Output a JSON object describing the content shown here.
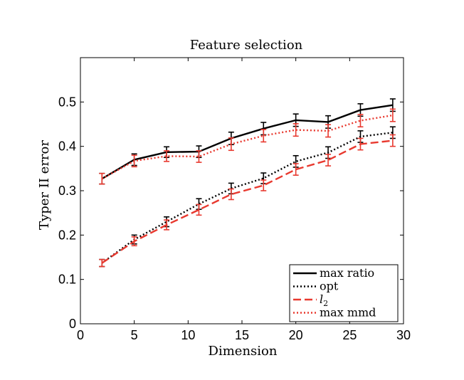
{
  "chart_data": {
    "type": "line",
    "title": "Feature selection",
    "xlabel": "Dimension",
    "ylabel": "Typer II error",
    "xlim": [
      0,
      30
    ],
    "ylim": [
      0,
      0.6
    ],
    "xticks": [
      0,
      5,
      10,
      15,
      20,
      25,
      30
    ],
    "yticks": [
      0,
      0.1,
      0.2,
      0.3,
      0.4,
      0.5
    ],
    "xtick_labels": [
      "0",
      "5",
      "10",
      "15",
      "20",
      "25",
      "30"
    ],
    "ytick_labels": [
      "0",
      "0.1",
      "0.2",
      "0.3",
      "0.4",
      "0.5"
    ],
    "grid": false,
    "legend_position": "bottom-right",
    "x": [
      2,
      5,
      8,
      11,
      14,
      17,
      20,
      23,
      26,
      29
    ],
    "series": [
      {
        "name": "max ratio",
        "color": "#000000",
        "dash": "solid",
        "values": [
          0.327,
          0.37,
          0.387,
          0.388,
          0.418,
          0.44,
          0.459,
          0.455,
          0.482,
          0.493
        ],
        "errors": [
          0.012,
          0.013,
          0.012,
          0.013,
          0.014,
          0.014,
          0.014,
          0.014,
          0.014,
          0.014
        ]
      },
      {
        "name": "opt",
        "color": "#000000",
        "dash": "dotted",
        "values": [
          0.137,
          0.19,
          0.23,
          0.27,
          0.305,
          0.328,
          0.366,
          0.386,
          0.422,
          0.431
        ],
        "errors": [
          0.008,
          0.01,
          0.011,
          0.012,
          0.012,
          0.012,
          0.013,
          0.013,
          0.013,
          0.013
        ]
      },
      {
        "name": "l2",
        "color": "#e8392f",
        "dash": "dashed",
        "values": [
          0.137,
          0.186,
          0.223,
          0.257,
          0.292,
          0.312,
          0.348,
          0.369,
          0.405,
          0.413
        ],
        "errors": [
          0.008,
          0.01,
          0.011,
          0.012,
          0.012,
          0.012,
          0.013,
          0.013,
          0.013,
          0.013
        ]
      },
      {
        "name": "max mmd",
        "color": "#e8392f",
        "dash": "dotted",
        "values": [
          0.327,
          0.367,
          0.378,
          0.377,
          0.405,
          0.424,
          0.437,
          0.435,
          0.458,
          0.47
        ],
        "errors": [
          0.012,
          0.013,
          0.012,
          0.013,
          0.014,
          0.014,
          0.014,
          0.014,
          0.014,
          0.014
        ]
      }
    ],
    "legend": {
      "entries": [
        {
          "label": "max ratio",
          "series_index": 0
        },
        {
          "label": "opt",
          "series_index": 1
        },
        {
          "label": "l",
          "subscript": "2",
          "italic": true,
          "series_index": 2
        },
        {
          "label": "max mmd",
          "series_index": 3
        }
      ]
    }
  }
}
